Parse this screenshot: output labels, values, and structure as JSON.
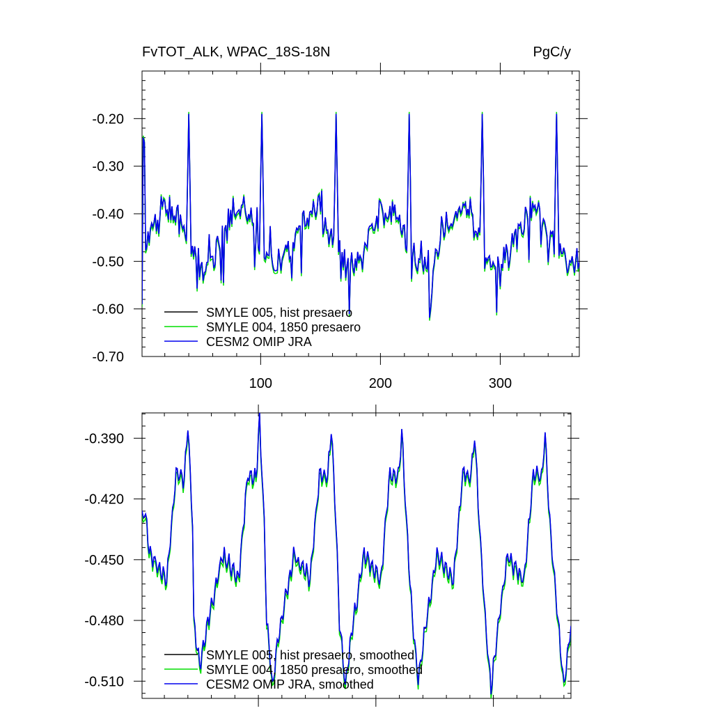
{
  "header": {
    "title": "FvTOT_ALK, WPAC_18S-18N",
    "units": "PgC/y"
  },
  "chart_data": [
    {
      "type": "line",
      "xlim": [
        1,
        366
      ],
      "ylim": [
        -0.7,
        -0.1
      ],
      "xticks": [
        100,
        200,
        300
      ],
      "xtick_labels": [
        "100",
        "200",
        "300"
      ],
      "yticks": [
        -0.6,
        -0.5,
        -0.4,
        -0.3,
        -0.2
      ],
      "ytick_labels": [
        "-0.60",
        "-0.50",
        "-0.40",
        "-0.30",
        "-0.20"
      ],
      "ylim_label": "-0.70",
      "grid": false,
      "legend": "bottom-left",
      "series": [
        {
          "name": "SMYLE 005, hist presaero",
          "color": "#000000"
        },
        {
          "name": "SMYLE 004, 1850 presaero",
          "color": "#00dd00"
        },
        {
          "name": "CESM2 OMIP JRA",
          "color": "#0000ee"
        }
      ],
      "description": "Daily values; base level near -0.45 with many spikes between about -0.65 and -0.35; sharp peaks near -0.19 at days ~40, ~101, ~163, ~224, ~285, ~347."
    },
    {
      "type": "line",
      "xlim": [
        1,
        366
      ],
      "ylim": [
        -0.5185,
        -0.3775
      ],
      "xticks": [
        100,
        200,
        300
      ],
      "yticks": [
        -0.51,
        -0.48,
        -0.45,
        -0.42,
        -0.39
      ],
      "ytick_labels": [
        "-0.510",
        "-0.480",
        "-0.450",
        "-0.420",
        "-0.390"
      ],
      "grid": false,
      "legend": "bottom-left",
      "series": [
        {
          "name": "SMYLE 005, hist presaero, smoothed",
          "color": "#000000"
        },
        {
          "name": "SMYLE 004, 1850 presaero, smoothed",
          "color": "#00dd00"
        },
        {
          "name": "CESM2 OMIP JRA, smoothed",
          "color": "#0000ee"
        }
      ],
      "peaks": [
        {
          "x": 40,
          "y": -0.382
        },
        {
          "x": 101,
          "y": -0.382
        },
        {
          "x": 162,
          "y": -0.385
        },
        {
          "x": 222,
          "y": -0.387
        },
        {
          "x": 284,
          "y": -0.388
        },
        {
          "x": 344,
          "y": -0.389
        }
      ],
      "troughs": [
        {
          "x": 50,
          "y": -0.503
        },
        {
          "x": 112,
          "y": -0.513
        },
        {
          "x": 174,
          "y": -0.513
        },
        {
          "x": 236,
          "y": -0.51
        },
        {
          "x": 298,
          "y": -0.515
        },
        {
          "x": 360,
          "y": -0.513
        }
      ]
    }
  ]
}
